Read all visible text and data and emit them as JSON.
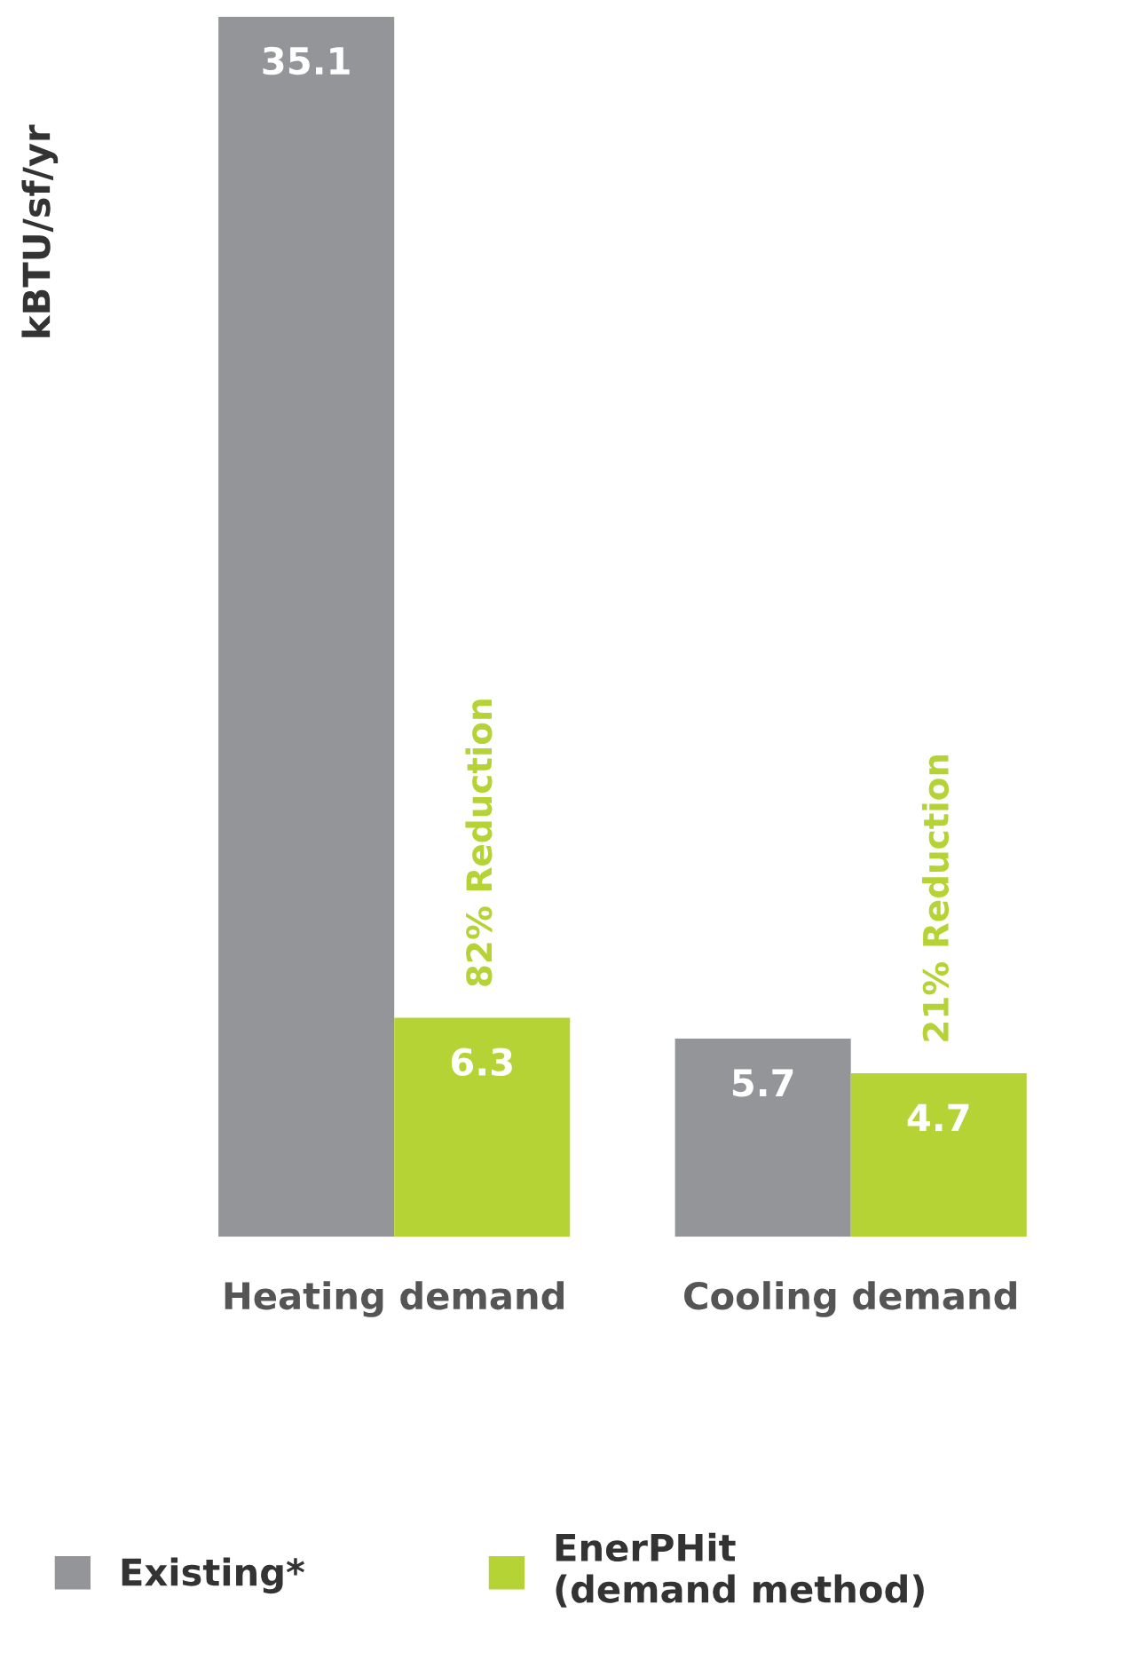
{
  "chart_data": {
    "type": "bar",
    "ylabel": "kBTU/sf/yr",
    "categories": [
      "Heating demand",
      "Cooling demand"
    ],
    "series": [
      {
        "name": "Existing*",
        "color": "#939598",
        "values": [
          35.1,
          5.7
        ]
      },
      {
        "name": "EnerPHit\n(demand method)",
        "color": "#b5d334",
        "values": [
          6.3,
          4.7
        ]
      }
    ],
    "data_labels": true,
    "legend": "bottom",
    "grid": false,
    "annotations": [
      {
        "text": "82% Reduction",
        "x": "Heating demand",
        "y": 6.3
      },
      {
        "text": "21% Reduction",
        "x": "Cooling demand",
        "y": 4.7
      }
    ]
  }
}
